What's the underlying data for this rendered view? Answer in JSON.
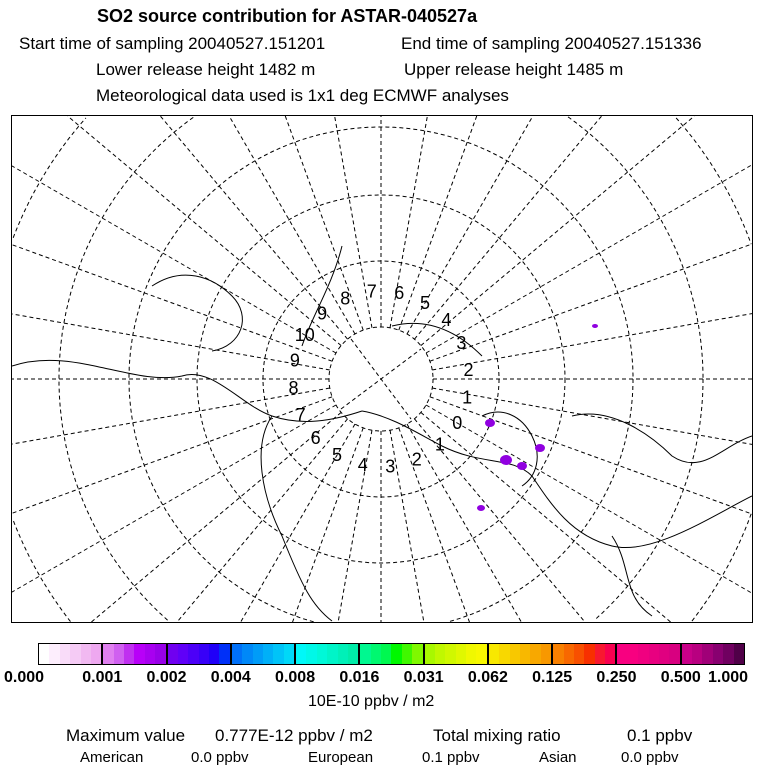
{
  "header": {
    "title": "SO2 source contribution for ASTAR-040527a",
    "start": "Start time of sampling 20040527.151201",
    "end": "End time of sampling 20040527.151336",
    "lower": "Lower release height 1482 m",
    "upper": "Upper release height 1485 m",
    "met": "Meteorological data used is 1x1 deg ECMWF analyses"
  },
  "map": {
    "projection": "polar stereographic north",
    "plume_color": "#9000e0",
    "labels": [
      "10",
      "9",
      "8",
      "7",
      "6",
      "5",
      "4",
      "3",
      "2",
      "1",
      "0",
      "1",
      "2",
      "3",
      "4",
      "5",
      "6",
      "7",
      "8",
      "9"
    ]
  },
  "colorbar": {
    "labels": [
      "0.000",
      "0.001",
      "0.002",
      "0.004",
      "0.008",
      "0.016",
      "0.031",
      "0.062",
      "0.125",
      "0.250",
      "0.500",
      "1.000"
    ],
    "unit": "10E-10 ppbv / m2",
    "segments": [
      [
        "#ffffff",
        "#fdeefd",
        "#f9dcf9",
        "#f5cbf5",
        "#f1b9f1",
        "#eea8f0"
      ],
      [
        "#e080f0",
        "#d060f0",
        "#c030f0",
        "#b800f8",
        "#a800f0",
        "#9800e8"
      ],
      [
        "#7000f0",
        "#6000f8",
        "#4c00f8",
        "#3800f8",
        "#2000f8",
        "#0030f8"
      ],
      [
        "#0070f8",
        "#0088f8",
        "#009cf8",
        "#00b0f8",
        "#00c4f8",
        "#00d8f8"
      ],
      [
        "#00f8f8",
        "#00f8e8",
        "#00f8d8",
        "#00f4c8",
        "#00f0b8",
        "#00eca8"
      ],
      [
        "#00f890",
        "#00f870",
        "#00f850",
        "#00f800",
        "#40f800",
        "#80f800"
      ],
      [
        "#a8f800",
        "#c0f800",
        "#d0f800",
        "#e0f800",
        "#f0f800",
        "#f8f800"
      ],
      [
        "#f8e800",
        "#f8d800",
        "#f8c800",
        "#f8b800",
        "#f8a800",
        "#f89800"
      ],
      [
        "#f88000",
        "#f86800",
        "#f85000",
        "#f83000",
        "#f81830",
        "#f80050"
      ],
      [
        "#f80080",
        "#f80080",
        "#f00080",
        "#e80080",
        "#e00080",
        "#d80080"
      ],
      [
        "#c80088",
        "#b80080",
        "#a00078",
        "#880070",
        "#700060",
        "#500048"
      ]
    ]
  },
  "footer": {
    "max_label": "Maximum value",
    "max_value": "0.777E-12 ppbv / m2",
    "total_label": "Total mixing ratio",
    "total_value": "0.1 ppbv",
    "american_label": "American",
    "american_value": "0.0 ppbv",
    "european_label": "European",
    "european_value": "0.1 ppbv",
    "asian_label": "Asian",
    "asian_value": "0.0 ppbv"
  }
}
